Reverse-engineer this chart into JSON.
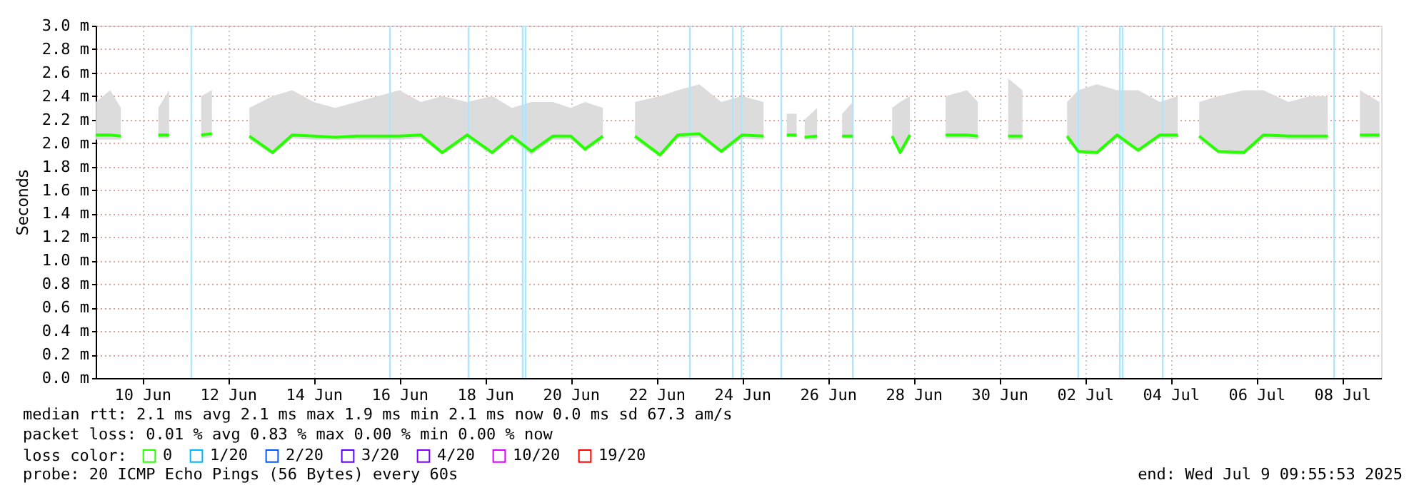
{
  "chart_data": {
    "type": "line",
    "ylabel": "Seconds",
    "xlim": [
      "2025-06-09T09:55",
      "2025-07-09T09:55"
    ],
    "xticks": [
      {
        "value": "2025-06-10T12:00",
        "label": "10 Jun"
      },
      {
        "value": "2025-06-12T12:00",
        "label": "12 Jun"
      },
      {
        "value": "2025-06-14T12:00",
        "label": "14 Jun"
      },
      {
        "value": "2025-06-16T12:00",
        "label": "16 Jun"
      },
      {
        "value": "2025-06-18T12:00",
        "label": "18 Jun"
      },
      {
        "value": "2025-06-20T12:00",
        "label": "20 Jun"
      },
      {
        "value": "2025-06-22T12:00",
        "label": "22 Jun"
      },
      {
        "value": "2025-06-24T12:00",
        "label": "24 Jun"
      },
      {
        "value": "2025-06-26T12:00",
        "label": "26 Jun"
      },
      {
        "value": "2025-06-28T12:00",
        "label": "28 Jun"
      },
      {
        "value": "2025-06-30T12:00",
        "label": "30 Jun"
      },
      {
        "value": "2025-07-02T12:00",
        "label": "02 Jul"
      },
      {
        "value": "2025-07-04T12:00",
        "label": "04 Jul"
      },
      {
        "value": "2025-07-06T12:00",
        "label": "06 Jul"
      },
      {
        "value": "2025-07-08T12:00",
        "label": "08 Jul"
      }
    ],
    "ylim": [
      0,
      3.0
    ],
    "yticks": [
      {
        "value": 0.0,
        "label": "0.0 m"
      },
      {
        "value": 0.2,
        "label": "0.2 m"
      },
      {
        "value": 0.4,
        "label": "0.4 m"
      },
      {
        "value": 0.6,
        "label": "0.6 m"
      },
      {
        "value": 0.8,
        "label": "0.8 m"
      },
      {
        "value": 1.0,
        "label": "1.0 m"
      },
      {
        "value": 1.2,
        "label": "1.2 m"
      },
      {
        "value": 1.4,
        "label": "1.4 m"
      },
      {
        "value": 1.6,
        "label": "1.6 m"
      },
      {
        "value": 1.8,
        "label": "1.8 m"
      },
      {
        "value": 2.0,
        "label": "2.0 m"
      },
      {
        "value": 2.2,
        "label": "2.2 m"
      },
      {
        "value": 2.4,
        "label": "2.4 m"
      },
      {
        "value": 2.6,
        "label": "2.6 m"
      },
      {
        "value": 2.8,
        "label": "2.8 m"
      },
      {
        "value": 3.0,
        "label": "3.0 m"
      }
    ],
    "grid": true,
    "legend": "bottom left",
    "legend_title": "loss color:",
    "x": [
      "2025-06-09T10:00",
      "2025-06-09T18:00",
      "2025-06-10T00:00",
      "2025-06-10T12:00",
      "2025-06-10T21:00",
      "2025-06-11T03:00",
      "2025-06-11T12:00",
      "2025-06-11T21:00",
      "2025-06-12T03:00",
      "2025-06-12T12:00",
      "2025-06-13T00:00",
      "2025-06-13T13:00",
      "2025-06-14T00:00",
      "2025-06-14T12:00",
      "2025-06-15T00:00",
      "2025-06-15T12:00",
      "2025-06-16T00:00",
      "2025-06-16T12:00",
      "2025-06-17T00:00",
      "2025-06-17T12:00",
      "2025-06-18T02:00",
      "2025-06-18T16:00",
      "2025-06-19T03:00",
      "2025-06-19T14:00",
      "2025-06-20T02:00",
      "2025-06-20T12:00",
      "2025-06-20T20:00",
      "2025-06-21T06:00",
      "2025-06-21T19:00",
      "2025-06-22T00:00",
      "2025-06-22T14:00",
      "2025-06-23T00:00",
      "2025-06-23T12:00",
      "2025-06-24T00:20",
      "2025-06-24T12:00",
      "2025-06-25T00:00",
      "2025-06-25T11:30",
      "2025-06-25T13:00",
      "2025-06-25T18:30",
      "2025-06-25T20:30",
      "2025-06-25T23:00",
      "2025-06-26T06:00",
      "2025-06-26T12:00",
      "2025-06-26T20:00",
      "2025-06-27T02:00",
      "2025-06-27T10:00",
      "2025-06-28T00:00",
      "2025-06-28T04:30",
      "2025-06-28T10:00",
      "2025-06-28T18:00",
      "2025-06-29T06:00",
      "2025-06-29T18:00",
      "2025-06-30T00:00",
      "2025-06-30T09:00",
      "2025-06-30T17:00",
      "2025-07-01T01:00",
      "2025-07-01T10:00",
      "2025-07-02T02:00",
      "2025-07-02T08:15",
      "2025-07-02T18:45",
      "2025-07-03T06:00",
      "2025-07-03T17:50",
      "2025-07-04T06:00",
      "2025-07-04T16:00",
      "2025-07-04T21:00",
      "2025-07-05T04:00",
      "2025-07-05T14:40",
      "2025-07-06T05:00",
      "2025-07-06T16:00",
      "2025-07-07T06:00",
      "2025-07-07T18:00",
      "2025-07-08T04:00",
      "2025-07-08T14:00",
      "2025-07-08T22:00",
      "2025-07-09T09:00"
    ],
    "series": [
      {
        "name": "0",
        "color": "#26ff00",
        "values": [
          2.07,
          2.07,
          2.06,
          null,
          2.07,
          2.07,
          null,
          2.07,
          2.08,
          null,
          2.06,
          1.92,
          2.07,
          2.06,
          2.05,
          2.06,
          2.06,
          2.06,
          2.07,
          1.92,
          2.07,
          1.92,
          2.06,
          1.93,
          2.06,
          2.06,
          1.95,
          2.06,
          null,
          2.06,
          1.9,
          2.07,
          2.08,
          1.93,
          2.07,
          2.06,
          null,
          2.07,
          2.07,
          null,
          2.05,
          2.06,
          null,
          2.06,
          2.06,
          null,
          2.06,
          1.92,
          2.07,
          null,
          2.07,
          2.07,
          2.06,
          null,
          2.06,
          2.06,
          null,
          2.06,
          1.93,
          1.92,
          2.07,
          1.94,
          2.07,
          2.07,
          null,
          2.06,
          1.93,
          1.92,
          2.07,
          2.06,
          2.06,
          2.06,
          null,
          2.07,
          2.07
        ],
        "lower": [
          2.03,
          2.03,
          2.03,
          null,
          2.04,
          2.04,
          null,
          2.04,
          2.05,
          null,
          2.03,
          1.9,
          2.04,
          2.03,
          2.03,
          2.03,
          2.03,
          2.03,
          2.04,
          1.9,
          2.04,
          1.9,
          2.03,
          1.9,
          2.03,
          2.03,
          1.93,
          2.03,
          null,
          2.03,
          1.88,
          2.04,
          2.05,
          1.91,
          2.04,
          2.03,
          null,
          2.05,
          2.05,
          null,
          2.03,
          2.03,
          null,
          2.04,
          2.04,
          null,
          2.03,
          1.9,
          2.04,
          null,
          2.04,
          2.04,
          2.03,
          null,
          2.03,
          2.03,
          null,
          2.03,
          1.91,
          1.9,
          2.04,
          1.92,
          2.04,
          2.04,
          null,
          2.03,
          1.91,
          1.9,
          2.04,
          2.03,
          2.03,
          2.03,
          null,
          2.04,
          2.04
        ],
        "upper": [
          2.35,
          2.45,
          2.3,
          null,
          2.3,
          2.45,
          null,
          2.4,
          2.45,
          null,
          2.3,
          2.4,
          2.45,
          2.35,
          2.3,
          2.35,
          2.4,
          2.45,
          2.35,
          2.4,
          2.35,
          2.4,
          2.3,
          2.35,
          2.35,
          2.3,
          2.35,
          2.3,
          null,
          2.35,
          2.4,
          2.45,
          2.5,
          2.35,
          2.4,
          2.35,
          null,
          2.25,
          2.25,
          null,
          2.2,
          2.3,
          null,
          2.25,
          2.35,
          null,
          2.3,
          2.35,
          2.4,
          null,
          2.4,
          2.45,
          2.35,
          null,
          2.55,
          2.45,
          null,
          2.35,
          2.45,
          2.5,
          2.45,
          2.45,
          2.35,
          2.4,
          null,
          2.35,
          2.4,
          2.45,
          2.45,
          2.35,
          2.4,
          2.4,
          null,
          2.45,
          2.35
        ]
      },
      {
        "name": "1/20",
        "color": "#00b8ff",
        "values": [
          null,
          null,
          null,
          null,
          null,
          null,
          null,
          null,
          null,
          null,
          null,
          null,
          null,
          null,
          null,
          null,
          null,
          null,
          null,
          null,
          null,
          null,
          null,
          null,
          null,
          null,
          null,
          null,
          null,
          null,
          null,
          null,
          null,
          null,
          null,
          null,
          null,
          null,
          null,
          null,
          null,
          null,
          null,
          null,
          null,
          null,
          null,
          null,
          null,
          null,
          null,
          null,
          null,
          null,
          null,
          null,
          null,
          null,
          null,
          null,
          null,
          null,
          null,
          null,
          null,
          null,
          null,
          null,
          null,
          null,
          null,
          null,
          null,
          null,
          null
        ]
      },
      {
        "name": "2/20",
        "color": "#0059ff",
        "values": [
          null,
          null,
          null,
          null,
          null,
          null,
          null,
          null,
          null,
          null,
          null,
          null,
          null,
          null,
          null,
          null,
          null,
          null,
          null,
          null,
          null,
          null,
          null,
          null,
          null,
          null,
          null,
          null,
          null,
          null,
          null,
          null,
          null,
          null,
          null,
          null,
          null,
          null,
          null,
          null,
          null,
          null,
          null,
          null,
          null,
          null,
          null,
          null,
          null,
          null,
          null,
          null,
          null,
          null,
          null,
          null,
          null,
          null,
          null,
          null,
          null,
          null,
          null,
          null,
          null,
          null,
          null,
          null,
          null,
          null,
          null,
          null,
          null,
          null,
          null
        ]
      },
      {
        "name": "3/20",
        "color": "#5e00ff",
        "values": [
          null,
          null,
          null,
          null,
          null,
          null,
          null,
          null,
          null,
          null,
          null,
          null,
          null,
          null,
          null,
          null,
          null,
          null,
          null,
          null,
          null,
          null,
          null,
          null,
          null,
          null,
          null,
          null,
          null,
          null,
          null,
          null,
          null,
          null,
          null,
          null,
          null,
          null,
          null,
          null,
          null,
          null,
          null,
          null,
          null,
          null,
          null,
          null,
          null,
          null,
          null,
          null,
          null,
          null,
          null,
          null,
          null,
          null,
          null,
          null,
          null,
          null,
          null,
          null,
          null,
          null,
          null,
          null,
          null,
          null,
          null,
          null,
          null,
          null,
          null
        ]
      },
      {
        "name": "4/20",
        "color": "#7e00ff",
        "values": [
          null,
          null,
          null,
          null,
          null,
          null,
          null,
          null,
          null,
          null,
          null,
          null,
          null,
          null,
          null,
          null,
          null,
          null,
          null,
          null,
          null,
          null,
          null,
          null,
          null,
          null,
          null,
          null,
          null,
          null,
          null,
          null,
          null,
          null,
          null,
          null,
          null,
          null,
          null,
          null,
          null,
          null,
          null,
          null,
          null,
          null,
          null,
          null,
          null,
          null,
          null,
          null,
          null,
          null,
          null,
          null,
          null,
          null,
          null,
          null,
          null,
          null,
          null,
          null,
          null,
          null,
          null,
          null,
          null,
          null,
          null,
          null,
          null,
          null,
          null
        ]
      },
      {
        "name": "10/20",
        "color": "#dd00ff",
        "values": [
          null,
          null,
          null,
          null,
          null,
          null,
          null,
          null,
          null,
          null,
          null,
          null,
          null,
          null,
          null,
          null,
          null,
          null,
          null,
          null,
          null,
          null,
          null,
          null,
          null,
          null,
          null,
          null,
          null,
          null,
          null,
          null,
          null,
          null,
          null,
          null,
          null,
          null,
          null,
          null,
          null,
          null,
          null,
          null,
          null,
          null,
          null,
          null,
          null,
          null,
          null,
          null,
          null,
          null,
          null,
          null,
          null,
          null,
          null,
          null,
          null,
          null,
          null,
          null,
          null,
          null,
          null,
          null,
          null,
          null,
          null,
          null,
          null,
          null,
          null
        ]
      },
      {
        "name": "19/20",
        "color": "#ff0000",
        "values": [
          null,
          null,
          null,
          null,
          null,
          null,
          null,
          null,
          null,
          null,
          null,
          null,
          null,
          null,
          null,
          null,
          null,
          null,
          null,
          null,
          null,
          null,
          null,
          null,
          null,
          null,
          null,
          null,
          null,
          null,
          null,
          null,
          null,
          null,
          null,
          null,
          null,
          null,
          null,
          null,
          null,
          null,
          null,
          null,
          null,
          null,
          null,
          null,
          null,
          null,
          null,
          null,
          null,
          null,
          null,
          null,
          null,
          null,
          null,
          null,
          null,
          null,
          null,
          null,
          null,
          null,
          null,
          null,
          null,
          null,
          null,
          null,
          null,
          null,
          null
        ]
      }
    ],
    "ref_lines": [
      {
        "axis": "x",
        "value": "2025-06-11T15:30",
        "color": "#aee6fb"
      },
      {
        "axis": "x",
        "value": "2025-06-16T06:45",
        "color": "#aee6fb"
      },
      {
        "axis": "x",
        "value": "2025-06-18T02:45",
        "color": "#aee6fb"
      },
      {
        "axis": "x",
        "value": "2025-06-19T09:05",
        "color": "#aee6fb"
      },
      {
        "axis": "x",
        "value": "2025-06-19T10:40",
        "color": "#aee6fb"
      },
      {
        "axis": "x",
        "value": "2025-06-23T06:45",
        "color": "#aee6fb"
      },
      {
        "axis": "x",
        "value": "2025-06-24T06:45",
        "color": "#aee6fb"
      },
      {
        "axis": "x",
        "value": "2025-06-24T11:35",
        "color": "#aee6fb"
      },
      {
        "axis": "x",
        "value": "2025-06-25T09:55",
        "color": "#aee6fb"
      },
      {
        "axis": "x",
        "value": "2025-06-27T02:00",
        "color": "#aee6fb"
      },
      {
        "axis": "x",
        "value": "2025-07-02T08:15",
        "color": "#aee6fb"
      },
      {
        "axis": "x",
        "value": "2025-07-03T07:35",
        "color": "#aee6fb"
      },
      {
        "axis": "x",
        "value": "2025-07-03T09:05",
        "color": "#aee6fb"
      },
      {
        "axis": "x",
        "value": "2025-07-04T07:35",
        "color": "#aee6fb"
      },
      {
        "axis": "x",
        "value": "2025-07-08T07:35",
        "color": "#aee6fb"
      }
    ],
    "annotations": [
      "median rtt:  2.1 ms avg  2.1 ms max  1.9 ms min  2.1 ms now  0.0 ms sd  67.3   am/s",
      "packet loss: 0.01 % avg  0.83 % max  0.00 % min  0.00 % now",
      "probe:       20 ICMP Echo Pings (56 Bytes) every 60s",
      "end: Wed Jul  9 09:55:53 2025"
    ]
  }
}
